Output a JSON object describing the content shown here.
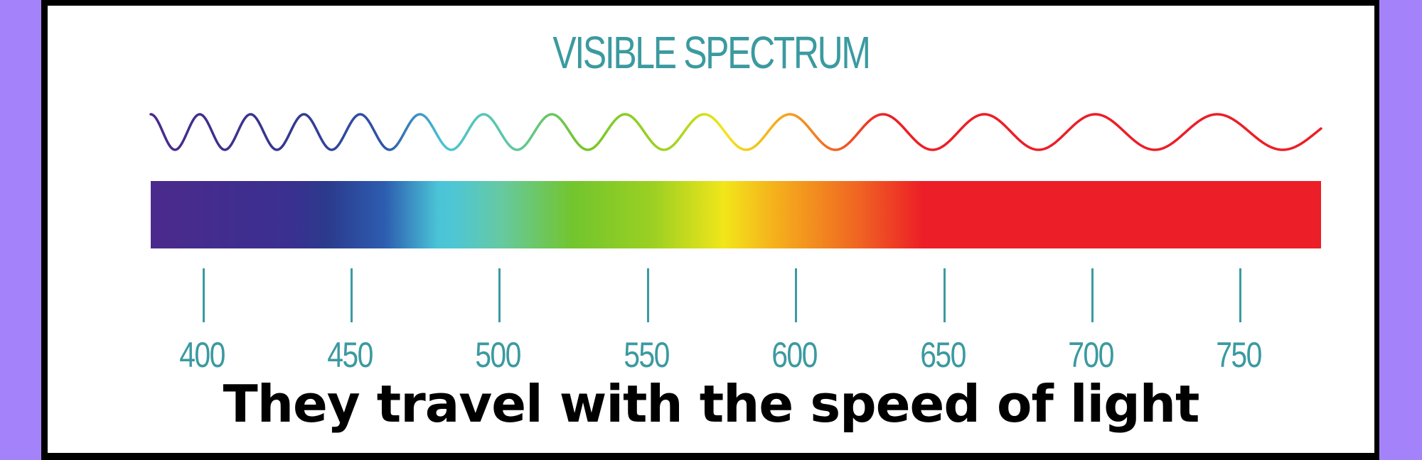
{
  "title": "VISIBLE SPECTRUM",
  "caption": "They travel with the speed of light",
  "ticks": [
    "400",
    "450",
    "500",
    "550",
    "600",
    "650",
    "700",
    "750"
  ],
  "colors": {
    "background": "#a483fa",
    "frame": "#000000",
    "accent": "#3b9aa0",
    "violet": "#4b2a8c",
    "blue": "#2d55a8",
    "cyan": "#4ac3d6",
    "green": "#74c62c",
    "yellow": "#f2e61a",
    "orange": "#f59a20",
    "red": "#ec1e27"
  }
}
